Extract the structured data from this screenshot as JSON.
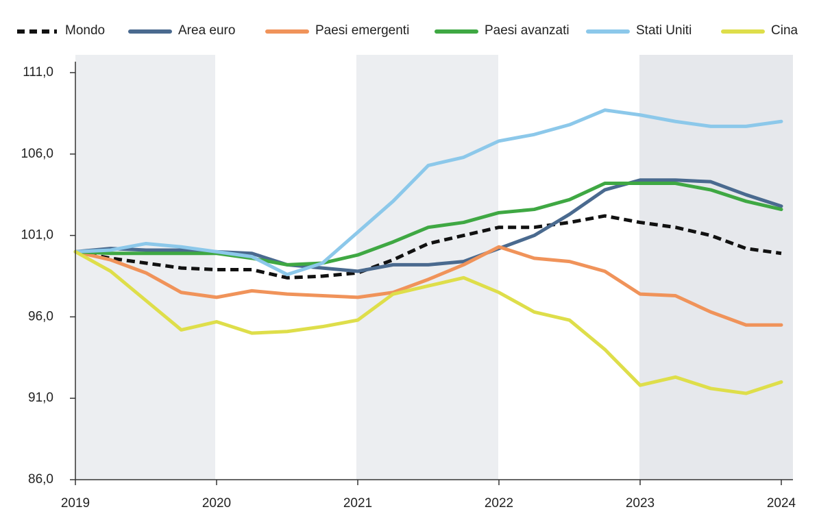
{
  "chart_data": {
    "type": "line",
    "x": [
      2019,
      2019.25,
      2019.5,
      2019.75,
      2020,
      2020.25,
      2020.5,
      2020.75,
      2021,
      2021.25,
      2021.5,
      2021.75,
      2022,
      2022.25,
      2022.5,
      2022.75,
      2023,
      2023.25,
      2023.5,
      2023.75,
      2024
    ],
    "xlim": [
      2019,
      2024.2
    ],
    "xticks": [
      2019,
      2020,
      2021,
      2022,
      2023,
      2024
    ],
    "ylim": [
      86,
      111.5
    ],
    "yticks": [
      {
        "value": 86,
        "label": "86,0"
      },
      {
        "value": 91,
        "label": "91,0"
      },
      {
        "value": 96,
        "label": "96,0"
      },
      {
        "value": 101,
        "label": "101,0"
      },
      {
        "value": 106,
        "label": "106,0"
      },
      {
        "value": 111,
        "label": "111,0"
      }
    ],
    "series": [
      {
        "name": "Mondo",
        "color": "#111111",
        "dashed": true,
        "values": [
          100,
          99.6,
          99.3,
          99.0,
          98.9,
          98.9,
          98.4,
          98.5,
          98.7,
          99.5,
          100.5,
          101.0,
          101.5,
          101.5,
          101.8,
          102.2,
          101.8,
          101.5,
          101.0,
          100.2,
          99.9
        ]
      },
      {
        "name": "Area euro",
        "color": "#4a6a8f",
        "values": [
          100,
          100.2,
          100.1,
          100.1,
          100,
          99.9,
          99.2,
          99.0,
          98.8,
          99.2,
          99.2,
          99.4,
          100.2,
          101.0,
          102.3,
          103.8,
          104.4,
          104.4,
          104.3,
          103.5,
          102.8
        ]
      },
      {
        "name": "Paesi emergenti",
        "color": "#f0935a",
        "values": [
          100,
          99.5,
          98.7,
          97.5,
          97.2,
          97.6,
          97.4,
          97.3,
          97.2,
          97.5,
          98.3,
          99.2,
          100.3,
          99.6,
          99.4,
          98.8,
          97.4,
          97.3,
          96.3,
          95.5,
          95.5
        ]
      },
      {
        "name": "Paesi avanzati",
        "color": "#3fa843",
        "values": [
          100,
          99.9,
          99.9,
          99.9,
          99.9,
          99.6,
          99.2,
          99.3,
          99.8,
          100.6,
          101.5,
          101.8,
          102.4,
          102.6,
          103.2,
          104.2,
          104.2,
          104.2,
          103.8,
          103.1,
          102.6
        ]
      },
      {
        "name": "Stati Uniti",
        "color": "#8cc8ea",
        "values": [
          100,
          100.1,
          100.5,
          100.3,
          100,
          99.7,
          98.6,
          99.3,
          101.2,
          103.1,
          105.3,
          105.8,
          106.8,
          107.2,
          107.8,
          108.7,
          108.4,
          108.0,
          107.7,
          107.7,
          108.0
        ]
      },
      {
        "name": "Cina",
        "color": "#dede4a",
        "values": [
          100,
          98.8,
          97.0,
          95.2,
          95.7,
          95.0,
          95.1,
          95.4,
          95.8,
          97.4,
          97.9,
          98.4,
          97.5,
          96.3,
          95.8,
          94.0,
          91.8,
          92.3,
          91.6,
          91.3,
          92.0
        ]
      }
    ]
  }
}
